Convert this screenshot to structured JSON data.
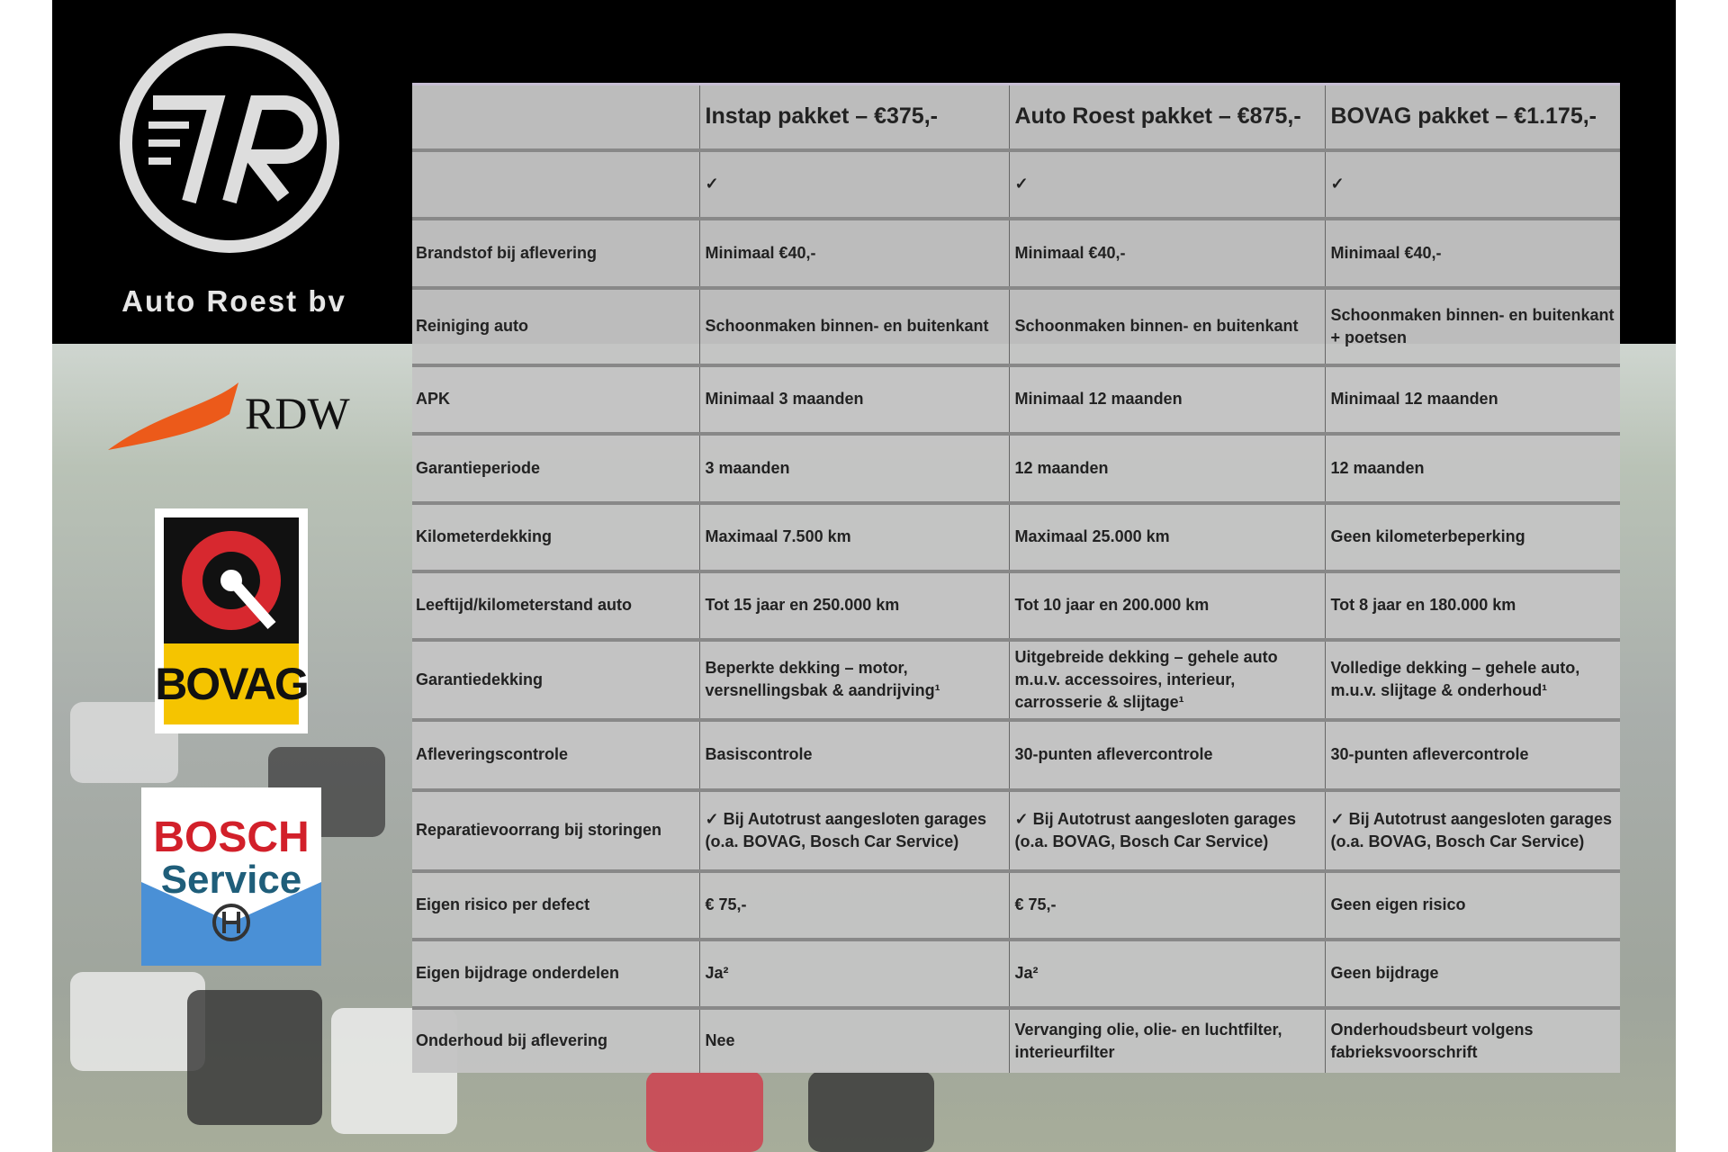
{
  "brand": {
    "name": "Auto Roest bv",
    "logo_text": "7R"
  },
  "logos": {
    "rdw": "RDW",
    "bovag": "BOVAG",
    "bosch_1": "BOSCH",
    "bosch_2": "Service"
  },
  "table": {
    "headers": [
      "",
      "Instap pakket – €375,-",
      "Auto Roest pakket – €875,-",
      "BOVAG pakket – €1.175,-"
    ],
    "rows": [
      [
        "",
        "✓",
        "✓",
        "✓"
      ],
      [
        "Brandstof bij aflevering",
        "Minimaal €40,-",
        "Minimaal €40,-",
        "Minimaal €40,-"
      ],
      [
        "Reiniging auto",
        "Schoonmaken binnen- en buitenkant",
        "Schoonmaken binnen- en buitenkant",
        "Schoonmaken binnen- en buitenkant + poetsen"
      ],
      [
        "APK",
        "Minimaal 3 maanden",
        "Minimaal 12 maanden",
        "Minimaal 12 maanden"
      ],
      [
        "Garantieperiode",
        "3 maanden",
        "12 maanden",
        "12 maanden"
      ],
      [
        "Kilometerdekking",
        "Maximaal 7.500 km",
        "Maximaal 25.000 km",
        "Geen kilometerbeperking"
      ],
      [
        "Leeftijd/kilometerstand auto",
        "Tot 15 jaar en 250.000 km",
        "Tot 10 jaar en 200.000 km",
        "Tot 8 jaar en 180.000 km"
      ],
      [
        "Garantiedekking",
        "Beperkte dekking – motor, versnellingsbak & aandrijving¹",
        "Uitgebreide dekking – gehele auto m.u.v. accessoires, interieur, carrosserie & slijtage¹",
        "Volledige dekking – gehele auto, m.u.v. slijtage & onderhoud¹"
      ],
      [
        "Afleveringscontrole",
        "Basiscontrole",
        "30-punten aflevercontrole",
        "30-punten aflevercontrole"
      ],
      [
        "Reparatievoorrang bij storingen",
        "✓ Bij Autotrust aangesloten garages (o.a. BOVAG, Bosch Car Service)",
        "✓ Bij Autotrust aangesloten garages (o.a. BOVAG, Bosch Car Service)",
        "✓ Bij Autotrust aangesloten garages (o.a. BOVAG, Bosch Car Service)"
      ],
      [
        "Eigen risico per defect",
        "€ 75,-",
        "€ 75,-",
        "Geen eigen risico"
      ],
      [
        "Eigen bijdrage onderdelen",
        "Ja²",
        "Ja²",
        "Geen bijdrage"
      ],
      [
        "Onderhoud bij aflevering",
        "Nee",
        "Vervanging olie, olie- en luchtfilter, interieurfilter",
        "Onderhoudsbeurt volgens fabrieksvoorschrift"
      ]
    ]
  }
}
